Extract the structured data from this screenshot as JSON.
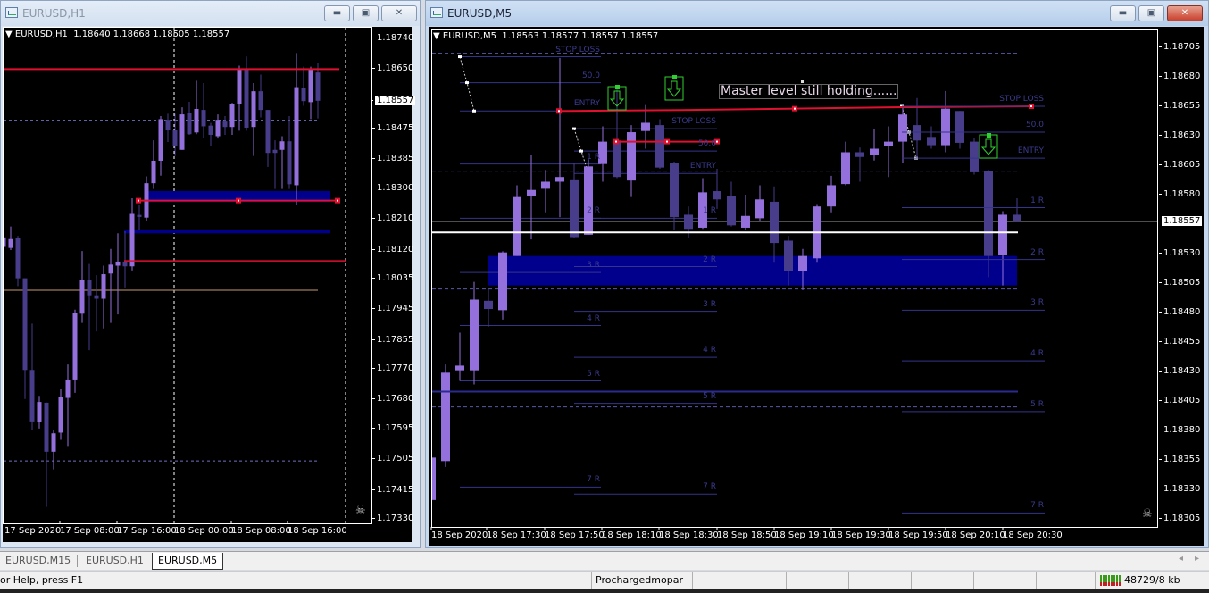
{
  "colors": {
    "bull": "#9370db",
    "bear": "#483d8b",
    "level_red": "#e0102f",
    "fib": "#3a3a8e",
    "zone": "#00008c",
    "arrow": "#30d030",
    "bid_line": "#5a5a5a"
  },
  "h1": {
    "title": "EURUSD,H1",
    "header": "▼ EURUSD,H1  1.18640 1.18668 1.18505 1.18557",
    "price_labels": [
      "1.18740",
      "1.18650",
      "1.18475",
      "1.18385",
      "1.18300",
      "1.18210",
      "1.18120",
      "1.18035",
      "1.17945",
      "1.17855",
      "1.17770",
      "1.17680",
      "1.17595",
      "1.17505",
      "1.17415",
      "1.17330"
    ],
    "current_price": "1.18557",
    "time_labels": [
      "17 Sep 2020",
      "17 Sep 08:00",
      "17 Sep 16:00",
      "18 Sep 00:00",
      "18 Sep 08:00",
      "18 Sep 16:00"
    ],
    "candles": [
      [
        1.18128,
        1.1816,
        1.18032,
        1.18156
      ],
      [
        1.18125,
        1.18188,
        1.18119,
        1.18151
      ],
      [
        1.18153,
        1.1816,
        1.18013,
        1.18036
      ],
      [
        1.18036,
        1.18036,
        1.17682,
        1.17767
      ],
      [
        1.17767,
        1.17903,
        1.1759,
        1.17616
      ],
      [
        1.17613,
        1.17691,
        1.17595,
        1.17673
      ],
      [
        1.17671,
        1.17671,
        1.17365,
        1.17527
      ],
      [
        1.17527,
        1.17592,
        1.17475,
        1.17581
      ],
      [
        1.17583,
        1.1771,
        1.17562,
        1.17687
      ],
      [
        1.17685,
        1.17783,
        1.17544,
        1.17739
      ],
      [
        1.17739,
        1.17944,
        1.177,
        1.17935
      ],
      [
        1.17932,
        1.18116,
        1.17905,
        1.1803
      ],
      [
        1.1803,
        1.18078,
        1.17825,
        1.17986
      ],
      [
        1.17986,
        1.18045,
        1.1788,
        1.17976
      ],
      [
        1.17976,
        1.18073,
        1.17889,
        1.18048
      ],
      [
        1.1805,
        1.18122,
        1.17905,
        1.18076
      ],
      [
        1.18073,
        1.18168,
        1.1793,
        1.18085
      ],
      [
        1.18085,
        1.18174,
        1.18009,
        1.18071
      ],
      [
        1.18071,
        1.18271,
        1.18059,
        1.18225
      ],
      [
        1.18222,
        1.18252,
        1.18179,
        1.18216
      ],
      [
        1.18214,
        1.18335,
        1.18205,
        1.18315
      ],
      [
        1.18315,
        1.18441,
        1.18298,
        1.18381
      ],
      [
        1.18381,
        1.18512,
        1.18337,
        1.18503
      ],
      [
        1.18501,
        1.18519,
        1.18436,
        1.1847
      ],
      [
        1.1847,
        1.18519,
        1.18395,
        1.18423
      ],
      [
        1.18413,
        1.18538,
        1.18413,
        1.18517
      ],
      [
        1.18521,
        1.18554,
        1.18457,
        1.18459
      ],
      [
        1.18464,
        1.18616,
        1.18459,
        1.18533
      ],
      [
        1.1853,
        1.18609,
        1.18447,
        1.18482
      ],
      [
        1.18484,
        1.18492,
        1.18425,
        1.18457
      ],
      [
        1.18453,
        1.18517,
        1.18446,
        1.18501
      ],
      [
        1.18496,
        1.18512,
        1.18457,
        1.1848
      ],
      [
        1.1848,
        1.18551,
        1.18457,
        1.18547
      ],
      [
        1.18547,
        1.1866,
        1.18469,
        1.1865
      ],
      [
        1.1865,
        1.18687,
        1.18469,
        1.18478
      ],
      [
        1.1848,
        1.18609,
        1.18395,
        1.18585
      ],
      [
        1.18585,
        1.18634,
        1.18508,
        1.1853
      ],
      [
        1.1853,
        1.1853,
        1.18363,
        1.18404
      ],
      [
        1.18413,
        1.18441,
        1.18298,
        1.18404
      ],
      [
        1.18413,
        1.18453,
        1.18298,
        1.18438
      ],
      [
        1.18438,
        1.18512,
        1.18298,
        1.18312
      ],
      [
        1.18309,
        1.18697,
        1.18252,
        1.18597
      ],
      [
        1.18595,
        1.18657,
        1.18542,
        1.18556
      ],
      [
        1.18553,
        1.18657,
        1.18503,
        1.1865
      ],
      [
        1.1864,
        1.18668,
        1.18505,
        1.18557
      ]
    ],
    "levels": {
      "red_top": 1.1865,
      "dashed": [
        1.185,
        1.175
      ],
      "zone": [
        1.18292,
        1.1826
      ],
      "red_mid": 1.18264,
      "band": [
        1.18179,
        1.18168
      ],
      "red_low": 1.18087,
      "tan": 1.18001
    }
  },
  "m5": {
    "title": "EURUSD,M5",
    "header": "▼ EURUSD,M5  1.18563 1.18577 1.18557 1.18557",
    "price_labels": [
      "1.18705",
      "1.18680",
      "1.18655",
      "1.18630",
      "1.18605",
      "1.18580",
      "1.18530",
      "1.18505",
      "1.18480",
      "1.18455",
      "1.18430",
      "1.18405",
      "1.18380",
      "1.18355",
      "1.18330",
      "1.18305"
    ],
    "current_price": "1.18557",
    "time_labels": [
      "18 Sep 2020",
      "18 Sep 17:30",
      "18 Sep 17:50",
      "18 Sep 18:10",
      "18 Sep 18:30",
      "18 Sep 18:50",
      "18 Sep 19:10",
      "18 Sep 19:30",
      "18 Sep 19:50",
      "18 Sep 20:10",
      "18 Sep 20:30"
    ],
    "candles": [
      [
        1.18321,
        1.18363,
        1.18302,
        1.18357
      ],
      [
        1.18354,
        1.18436,
        1.18349,
        1.18429
      ],
      [
        1.18431,
        1.18463,
        1.18422,
        1.18435
      ],
      [
        1.18431,
        1.18506,
        1.18419,
        1.18491
      ],
      [
        1.1849,
        1.185,
        1.18468,
        1.18483
      ],
      [
        1.18482,
        1.18532,
        1.18474,
        1.18531
      ],
      [
        1.18528,
        1.18588,
        1.18528,
        1.18578
      ],
      [
        1.18579,
        1.18614,
        1.18542,
        1.18584
      ],
      [
        1.18585,
        1.18601,
        1.18565,
        1.18591
      ],
      [
        1.18591,
        1.18696,
        1.18561,
        1.18595
      ],
      [
        1.18593,
        1.18607,
        1.18543,
        1.18544
      ],
      [
        1.18546,
        1.1861,
        1.18546,
        1.18604
      ],
      [
        1.18606,
        1.18638,
        1.18591,
        1.18625
      ],
      [
        1.18626,
        1.18671,
        1.18594,
        1.18595
      ],
      [
        1.18592,
        1.18639,
        1.18578,
        1.18633
      ],
      [
        1.18634,
        1.18656,
        1.18619,
        1.18641
      ],
      [
        1.18639,
        1.18644,
        1.18602,
        1.18603
      ],
      [
        1.18607,
        1.18608,
        1.1855,
        1.18561
      ],
      [
        1.18563,
        1.1857,
        1.18543,
        1.18551
      ],
      [
        1.18552,
        1.18594,
        1.18551,
        1.18582
      ],
      [
        1.18583,
        1.18602,
        1.18568,
        1.18576
      ],
      [
        1.18579,
        1.18591,
        1.18553,
        1.18554
      ],
      [
        1.18552,
        1.1858,
        1.1855,
        1.18562
      ],
      [
        1.1856,
        1.18588,
        1.18558,
        1.18576
      ],
      [
        1.18574,
        1.18587,
        1.18523,
        1.18539
      ],
      [
        1.18541,
        1.18545,
        1.18503,
        1.18515
      ],
      [
        1.18515,
        1.18534,
        1.18499,
        1.18528
      ],
      [
        1.18526,
        1.18572,
        1.18523,
        1.1857
      ],
      [
        1.1857,
        1.18596,
        1.18565,
        1.18588
      ],
      [
        1.18589,
        1.18625,
        1.18588,
        1.18616
      ],
      [
        1.18616,
        1.1862,
        1.18591,
        1.18612
      ],
      [
        1.18614,
        1.18636,
        1.18609,
        1.18619
      ],
      [
        1.18621,
        1.18638,
        1.18595,
        1.18625
      ],
      [
        1.18625,
        1.18655,
        1.18607,
        1.18648
      ],
      [
        1.18639,
        1.18662,
        1.18611,
        1.18626
      ],
      [
        1.18629,
        1.18638,
        1.18619,
        1.18622
      ],
      [
        1.18622,
        1.18668,
        1.18616,
        1.18653
      ],
      [
        1.18651,
        1.18651,
        1.18619,
        1.18624
      ],
      [
        1.18625,
        1.18628,
        1.18597,
        1.18599
      ],
      [
        1.186,
        1.18601,
        1.1851,
        1.18528
      ],
      [
        1.18529,
        1.18566,
        1.18503,
        1.18563
      ],
      [
        1.18563,
        1.18577,
        1.18557,
        1.18557
      ]
    ],
    "levels": {
      "dashed": [
        1.187,
        1.186,
        1.185,
        1.184
      ],
      "zone": [
        1.18528,
        1.18503
      ],
      "white": 1.18548,
      "thick_blue": 1.18413,
      "bid": 1.18557,
      "master": [
        1.18651,
        1.18655
      ],
      "short_red": 1.18625
    },
    "annotation": "Master level still holding......",
    "fibs": [
      {
        "levels": [
          [
            "STOP LOSS",
            1.18697
          ],
          [
            "50.0",
            1.18675
          ],
          [
            "ENTRY",
            1.18651
          ],
          [
            "1  R",
            1.18606
          ],
          [
            "2  R",
            1.1856
          ],
          [
            "3  R",
            1.18514
          ],
          [
            "4  R",
            1.18469
          ],
          [
            "5  R",
            1.18422
          ],
          [
            "7  R",
            1.18332
          ]
        ]
      },
      {
        "levels": [
          [
            "STOP LOSS",
            1.18636
          ],
          [
            "50.0",
            1.18617
          ],
          [
            "ENTRY",
            1.18598
          ],
          [
            "1  R",
            1.1856
          ],
          [
            "2  R",
            1.18519
          ],
          [
            "3  R",
            1.18481
          ],
          [
            "4  R",
            1.18442
          ],
          [
            "5  R",
            1.18403
          ],
          [
            "7  R",
            1.18326
          ]
        ]
      },
      {
        "levels": [
          [
            "STOP LOSS",
            1.18655
          ],
          [
            "50.0",
            1.18633
          ],
          [
            "ENTRY",
            1.18611
          ],
          [
            "1  R",
            1.18569
          ],
          [
            "2  R",
            1.18525
          ],
          [
            "3  R",
            1.18482
          ],
          [
            "4  R",
            1.18439
          ],
          [
            "5  R",
            1.18396
          ],
          [
            "7  R",
            1.1831
          ]
        ]
      }
    ]
  },
  "tabs": [
    "EURUSD,M15",
    "EURUSD,H1",
    "EURUSD,M5"
  ],
  "active_tab": "EURUSD,M5",
  "status": {
    "help": "or Help, press F1",
    "profile": "Prochargedmopar",
    "traffic": "48729/8 kb"
  },
  "icons": {
    "window": "chart-window-icon",
    "minimize": "minimize-icon",
    "restore": "restore-icon",
    "close": "close-icon",
    "skull": "skull-icon",
    "connection": "connection-bars-icon",
    "arrow": "down-arrow-icon"
  }
}
